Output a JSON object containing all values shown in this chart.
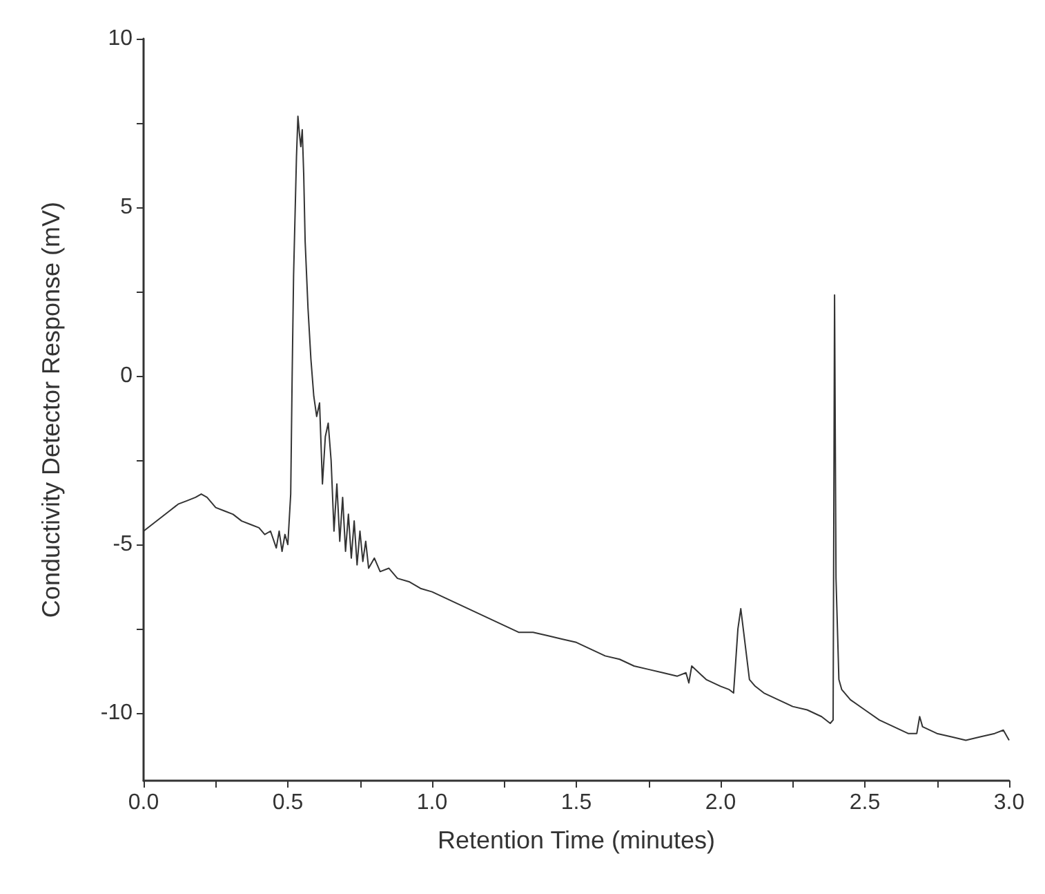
{
  "chart_data": {
    "type": "line",
    "xlabel": "Retention Time (minutes)",
    "ylabel": "Conductivity Detector Response (mV)",
    "xlim": [
      0,
      3
    ],
    "xticks": [
      {
        "value": 0,
        "label": "0.0"
      },
      {
        "value": 0.25,
        "label": null
      },
      {
        "value": 0.5,
        "label": "0.5"
      },
      {
        "value": 0.75,
        "label": null
      },
      {
        "value": 1,
        "label": "1.0"
      },
      {
        "value": 1.25,
        "label": null
      },
      {
        "value": 1.5,
        "label": "1.5"
      },
      {
        "value": 1.75,
        "label": null
      },
      {
        "value": 2,
        "label": "2.0"
      },
      {
        "value": 2.25,
        "label": null
      },
      {
        "value": 2.5,
        "label": "2.5"
      },
      {
        "value": 2.75,
        "label": null
      },
      {
        "value": 3,
        "label": "3.0"
      }
    ],
    "ylim": [
      -12,
      10
    ],
    "yticks": [
      {
        "value": -10,
        "label": "-10"
      },
      {
        "value": -7.5,
        "label": null
      },
      {
        "value": -5,
        "label": "-5"
      },
      {
        "value": -2.5,
        "label": null
      },
      {
        "value": 0,
        "label": "0"
      },
      {
        "value": 2.5,
        "label": null
      },
      {
        "value": 5,
        "label": "5"
      },
      {
        "value": 7.5,
        "label": null
      },
      {
        "value": 10,
        "label": "10"
      }
    ],
    "grid": false,
    "marker": "none",
    "line_style": "solid",
    "series": [
      {
        "color": "#333333",
        "x": [
          0,
          0.03,
          0.06,
          0.09,
          0.12,
          0.15,
          0.18,
          0.2,
          0.22,
          0.25,
          0.28,
          0.31,
          0.34,
          0.37,
          0.4,
          0.42,
          0.44,
          0.46,
          0.47,
          0.48,
          0.49,
          0.5,
          0.51,
          0.515,
          0.52,
          0.53,
          0.535,
          0.54,
          0.545,
          0.55,
          0.555,
          0.56,
          0.57,
          0.58,
          0.59,
          0.6,
          0.61,
          0.62,
          0.63,
          0.64,
          0.65,
          0.66,
          0.67,
          0.68,
          0.69,
          0.7,
          0.71,
          0.72,
          0.73,
          0.74,
          0.75,
          0.76,
          0.77,
          0.78,
          0.8,
          0.82,
          0.85,
          0.88,
          0.92,
          0.96,
          1,
          1.05,
          1.1,
          1.15,
          1.2,
          1.25,
          1.3,
          1.35,
          1.4,
          1.45,
          1.5,
          1.55,
          1.6,
          1.65,
          1.7,
          1.75,
          1.8,
          1.85,
          1.88,
          1.89,
          1.9,
          1.95,
          2,
          2.03,
          2.045,
          2.06,
          2.07,
          2.08,
          2.1,
          2.12,
          2.15,
          2.2,
          2.25,
          2.3,
          2.35,
          2.38,
          2.39,
          2.395,
          2.4,
          2.41,
          2.42,
          2.45,
          2.5,
          2.55,
          2.6,
          2.65,
          2.68,
          2.69,
          2.7,
          2.75,
          2.8,
          2.85,
          2.9,
          2.95,
          2.98,
          3
        ],
        "values": [
          -4.6,
          -4.4,
          -4.2,
          -4,
          -3.8,
          -3.7,
          -3.6,
          -3.5,
          -3.6,
          -3.9,
          -4,
          -4.1,
          -4.3,
          -4.4,
          -4.5,
          -4.7,
          -4.6,
          -5.1,
          -4.6,
          -5.2,
          -4.7,
          -5,
          -3.5,
          0,
          3,
          6.5,
          7.7,
          7.2,
          6.8,
          7.3,
          6,
          4,
          2,
          0.5,
          -0.6,
          -1.2,
          -0.8,
          -3.2,
          -1.8,
          -1.4,
          -2.5,
          -4.6,
          -3.2,
          -4.9,
          -3.6,
          -5.2,
          -4.1,
          -5.4,
          -4.3,
          -5.6,
          -4.6,
          -5.5,
          -4.9,
          -5.7,
          -5.4,
          -5.8,
          -5.7,
          -6,
          -6.1,
          -6.3,
          -6.4,
          -6.6,
          -6.8,
          -7,
          -7.2,
          -7.4,
          -7.6,
          -7.6,
          -7.7,
          -7.8,
          -7.9,
          -8.1,
          -8.3,
          -8.4,
          -8.6,
          -8.7,
          -8.8,
          -8.9,
          -8.8,
          -9.1,
          -8.6,
          -9,
          -9.2,
          -9.3,
          -9.4,
          -7.5,
          -6.9,
          -7.6,
          -9,
          -9.2,
          -9.4,
          -9.6,
          -9.8,
          -9.9,
          -10.1,
          -10.3,
          -10.2,
          2.4,
          -6,
          -9.0,
          -9.3,
          -9.6,
          -9.9,
          -10.2,
          -10.4,
          -10.6,
          -10.6,
          -10.1,
          -10.4,
          -10.6,
          -10.7,
          -10.8,
          -10.7,
          -10.6,
          -10.5,
          -10.8
        ]
      }
    ]
  }
}
